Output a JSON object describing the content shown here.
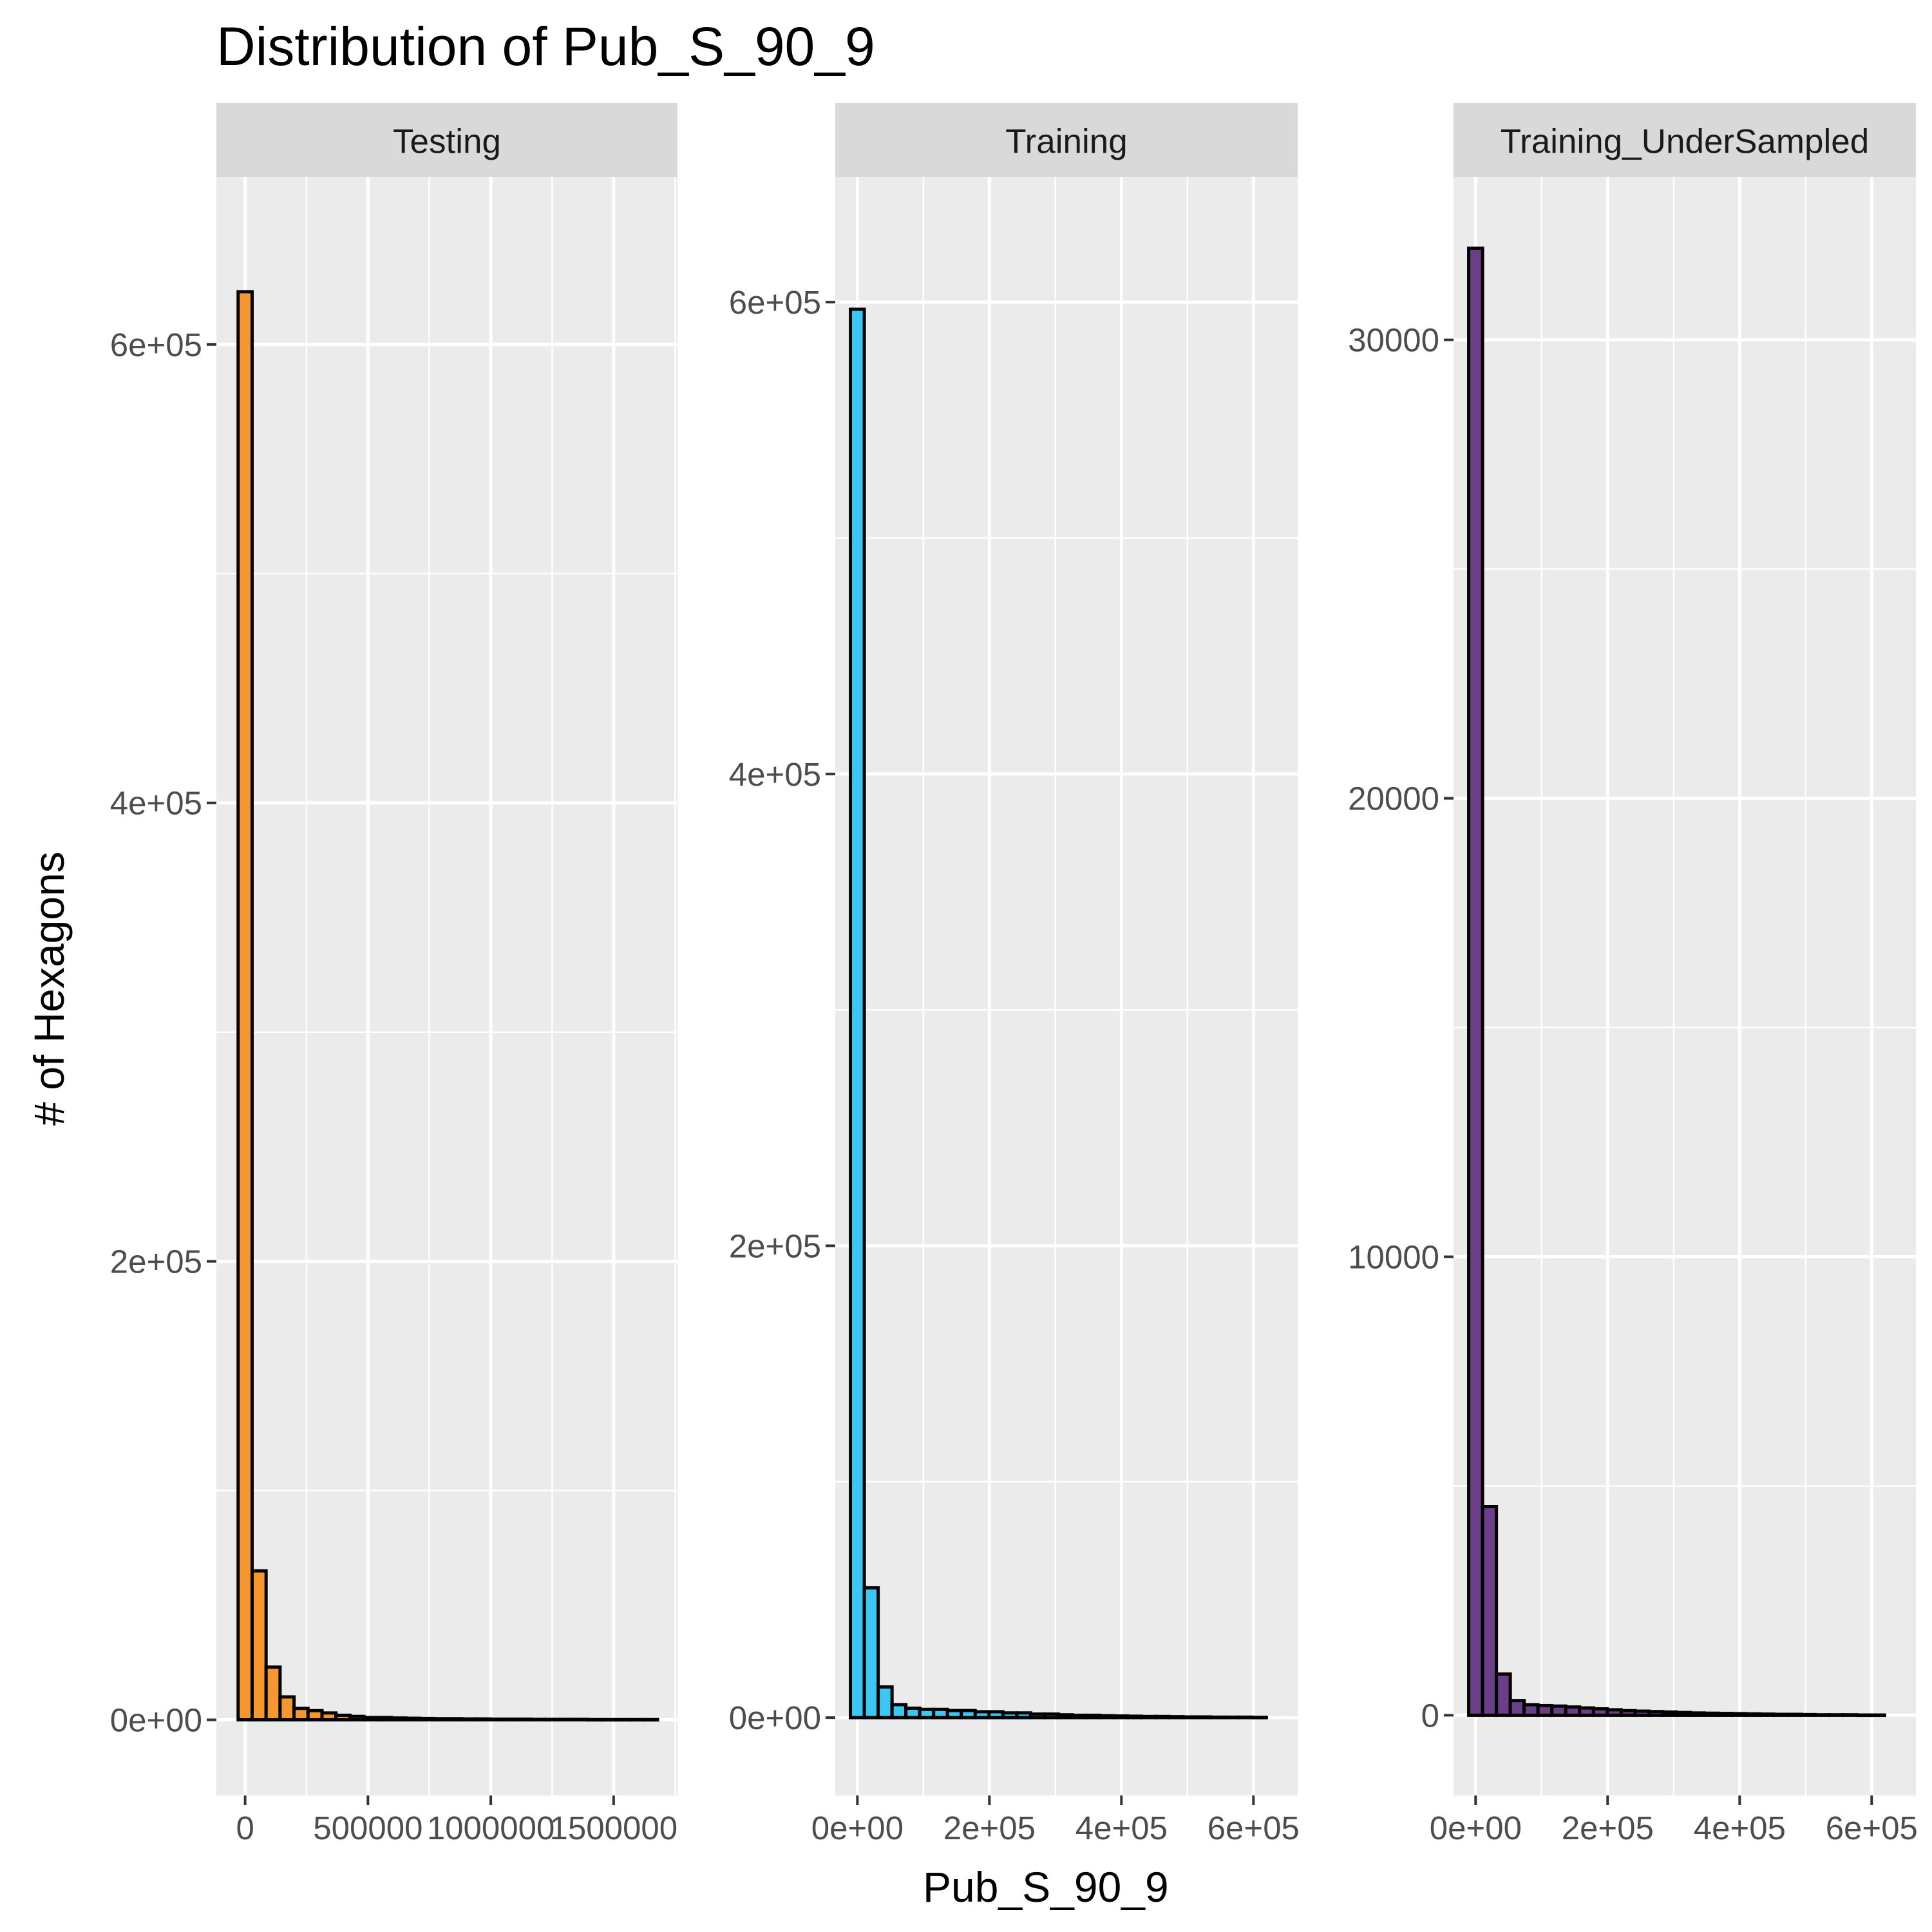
{
  "chart_data": {
    "type": "bar",
    "title": "Distribution of Pub_S_90_9",
    "xlabel": "Pub_S_90_9",
    "ylabel": "# of Hexagons",
    "grid": true,
    "facets": [
      {
        "name": "Testing",
        "color": "#F5972E",
        "xlim": [
          -117000,
          1760000
        ],
        "ylim": [
          -33000,
          673000
        ],
        "xticks": [
          {
            "value": 0,
            "label": "0"
          },
          {
            "value": 500000,
            "label": "500000"
          },
          {
            "value": 1000000,
            "label": "1000000"
          },
          {
            "value": 1500000,
            "label": "1500000"
          }
        ],
        "yticks": [
          {
            "value": 0,
            "label": "0e+00"
          },
          {
            "value": 200000,
            "label": "2e+05"
          },
          {
            "value": 400000,
            "label": "4e+05"
          },
          {
            "value": 600000,
            "label": "6e+05"
          }
        ],
        "bin_width": 56900,
        "bin_centers": [
          0,
          56900,
          113800,
          170700,
          227600,
          284500,
          341400,
          398300,
          455200,
          512100,
          569000,
          625900,
          682800,
          739700,
          796600,
          853500,
          910400,
          967300,
          1024200,
          1081100,
          1138000,
          1194900,
          1251800,
          1308700,
          1365600,
          1422500,
          1479400,
          1536300,
          1593200,
          1650100
        ],
        "values": [
          623000,
          65000,
          23000,
          10000,
          5000,
          4000,
          3000,
          2000,
          1500,
          1000,
          1000,
          800,
          700,
          600,
          500,
          500,
          400,
          400,
          300,
          300,
          300,
          200,
          200,
          200,
          200,
          100,
          100,
          100,
          100,
          100
        ]
      },
      {
        "name": "Training",
        "color": "#3CC6F2",
        "xlim": [
          -33500,
          667000
        ],
        "ylim": [
          -33000,
          653000
        ],
        "xticks": [
          {
            "value": 0,
            "label": "0e+00"
          },
          {
            "value": 200000,
            "label": "2e+05"
          },
          {
            "value": 400000,
            "label": "4e+05"
          },
          {
            "value": 600000,
            "label": "6e+05"
          }
        ],
        "yticks": [
          {
            "value": 0,
            "label": "0e+00"
          },
          {
            "value": 200000,
            "label": "2e+05"
          },
          {
            "value": 400000,
            "label": "4e+05"
          },
          {
            "value": 600000,
            "label": "6e+05"
          }
        ],
        "bin_width": 21000,
        "bin_centers": [
          0,
          21000,
          42000,
          63000,
          84000,
          105000,
          126000,
          147000,
          168000,
          189000,
          210000,
          231000,
          252000,
          273000,
          294000,
          315000,
          336000,
          357000,
          378000,
          399000,
          420000,
          441000,
          462000,
          483000,
          504000,
          525000,
          546000,
          567000,
          588000,
          609000
        ],
        "values": [
          597000,
          55000,
          13000,
          5500,
          4000,
          3500,
          3500,
          3000,
          3000,
          2500,
          2500,
          2000,
          2000,
          1500,
          1500,
          1200,
          1000,
          1000,
          800,
          700,
          600,
          500,
          500,
          400,
          300,
          300,
          200,
          200,
          200,
          100
        ]
      },
      {
        "name": "Training_UnderSampled",
        "color": "#6A3F87",
        "xlim": [
          -33500,
          667000
        ],
        "ylim": [
          -1750,
          33550
        ],
        "xticks": [
          {
            "value": 0,
            "label": "0e+00"
          },
          {
            "value": 200000,
            "label": "2e+05"
          },
          {
            "value": 400000,
            "label": "4e+05"
          },
          {
            "value": 600000,
            "label": "6e+05"
          }
        ],
        "yticks": [
          {
            "value": 0,
            "label": "0"
          },
          {
            "value": 10000,
            "label": "10000"
          },
          {
            "value": 20000,
            "label": "20000"
          },
          {
            "value": 30000,
            "label": "30000"
          }
        ],
        "bin_width": 21000,
        "bin_centers": [
          0,
          21000,
          42000,
          63000,
          84000,
          105000,
          126000,
          147000,
          168000,
          189000,
          210000,
          231000,
          252000,
          273000,
          294000,
          315000,
          336000,
          357000,
          378000,
          399000,
          420000,
          441000,
          462000,
          483000,
          504000,
          525000,
          546000,
          567000,
          588000,
          609000
        ],
        "values": [
          32000,
          4550,
          900,
          320,
          230,
          210,
          200,
          180,
          160,
          140,
          120,
          100,
          90,
          80,
          70,
          60,
          50,
          45,
          40,
          35,
          30,
          25,
          20,
          20,
          15,
          10,
          10,
          10,
          5,
          5
        ]
      }
    ]
  }
}
